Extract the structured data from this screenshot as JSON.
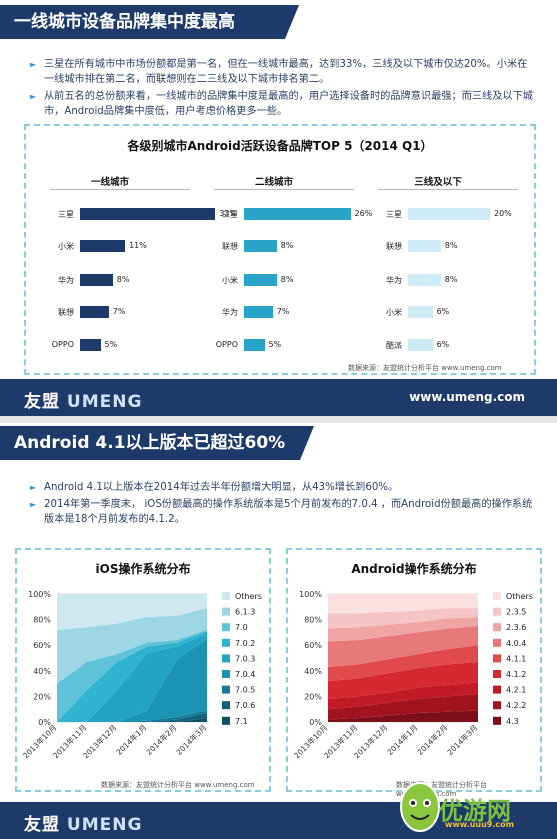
{
  "slide1": {
    "title": "一线城市设备品牌集中度最高",
    "bullets": [
      "三星在所有城市中市场份额都是第一名，但在一线城市最高，达到33%，三线及以下城市仅达20%。小米在一线城市排在第二名，而联想则在二三线及以下城市排名第二。",
      "从前五名的总份额来看，一线城市的品牌集中度是最高的，用户选择设备时的品牌意识最强；而三线及以下城市，Android品牌集中度低，用户考虑价格更多一些。"
    ],
    "source": "数据来源：友盟统计分析平台 www.umeng.com",
    "footer_logo_a": "友盟",
    "footer_logo_b": "UMENG",
    "footer_site": "www.umeng.com"
  },
  "slide2": {
    "title": "Android 4.1以上版本已超过60%",
    "bullets": [
      "Android 4.1以上版本在2014年过去半年份额增大明显，从43%增长到60%。",
      "2014年第一季度末， iOS份额最高的操作系统版本是5个月前发布的7.0.4 ，而Android份额最高的操作系统版本是18个月前发布的4.1.2。"
    ],
    "source": "数据来源：友盟统计分析平台 www.umeng.com",
    "footer_logo_a": "友盟",
    "footer_logo_b": "UMENG",
    "watermark": "优游网",
    "watermark_url": "www.uuu9.com"
  },
  "chart_data": [
    {
      "type": "bar",
      "title": "各级别城市Android活跃设备品牌TOP 5（2014 Q1）",
      "panels": [
        {
          "name": "一线城市",
          "color": "#1e3a6b",
          "categories": [
            "三星",
            "小米",
            "华为",
            "联想",
            "OPPO"
          ],
          "values": [
            33,
            11,
            8,
            7,
            5
          ],
          "labels": [
            "33%",
            "11%",
            "8%",
            "7%",
            "5%"
          ]
        },
        {
          "name": "二线城市",
          "color": "#2aa3c9",
          "categories": [
            "三星",
            "联想",
            "小米",
            "华为",
            "OPPO"
          ],
          "values": [
            26,
            8,
            8,
            7,
            5
          ],
          "labels": [
            "26%",
            "8%",
            "8%",
            "7%",
            "5%"
          ]
        },
        {
          "name": "三线及以下",
          "color": "#cdeaf5",
          "categories": [
            "三星",
            "联想",
            "华为",
            "小米",
            "酷派"
          ],
          "values": [
            20,
            8,
            8,
            6,
            6
          ],
          "labels": [
            "20%",
            "8%",
            "8%",
            "6%",
            "6%"
          ]
        }
      ]
    },
    {
      "type": "area",
      "title": "iOS操作系统分布",
      "x": [
        "2013年10月",
        "2013年11月",
        "2013年12月",
        "2014年1月",
        "2014年2月",
        "2014年3月"
      ],
      "yticks": [
        "0%",
        "20%",
        "40%",
        "60%",
        "80%",
        "100%"
      ],
      "ylim": [
        0,
        100
      ],
      "series": [
        {
          "name": "7.1",
          "color": "#0e4f66",
          "values": [
            0,
            0,
            0,
            0,
            0,
            3
          ]
        },
        {
          "name": "7.0.6",
          "color": "#12627d",
          "values": [
            0,
            0,
            0,
            0,
            2,
            4
          ]
        },
        {
          "name": "7.0.5",
          "color": "#167a97",
          "values": [
            0,
            0,
            0,
            1,
            2,
            2
          ]
        },
        {
          "name": "7.0.4",
          "color": "#1b93b3",
          "values": [
            0,
            0,
            0,
            8,
            45,
            56
          ]
        },
        {
          "name": "7.0.3",
          "color": "#23a4c5",
          "values": [
            0,
            0,
            25,
            45,
            10,
            4
          ]
        },
        {
          "name": "7.0.2",
          "color": "#2fb3cf",
          "values": [
            0,
            25,
            22,
            5,
            3,
            2
          ]
        },
        {
          "name": "7.0",
          "color": "#5fc3d9",
          "values": [
            30,
            22,
            6,
            3,
            2,
            1
          ]
        },
        {
          "name": "6.1.3",
          "color": "#9dd6e5",
          "values": [
            42,
            27,
            24,
            20,
            19,
            17
          ]
        },
        {
          "name": "Others",
          "color": "#cfe8f0",
          "values": [
            28,
            26,
            23,
            18,
            17,
            11
          ]
        }
      ]
    },
    {
      "type": "area",
      "title": "Android操作系统分布",
      "x": [
        "2013年10月",
        "2013年11月",
        "2013年12月",
        "2014年1月",
        "2014年2月",
        "2014年3月"
      ],
      "yticks": [
        "0%",
        "20%",
        "40%",
        "60%",
        "80%",
        "100%"
      ],
      "ylim": [
        0,
        100
      ],
      "series": [
        {
          "name": "4.3",
          "color": "#7e0f1a",
          "values": [
            2,
            3,
            5,
            7,
            8,
            9
          ]
        },
        {
          "name": "4.2.2",
          "color": "#a3121f",
          "values": [
            8,
            9,
            10,
            11,
            12,
            13
          ]
        },
        {
          "name": "4.2.1",
          "color": "#c21a26",
          "values": [
            8,
            8,
            8,
            9,
            9,
            9
          ]
        },
        {
          "name": "4.1.2",
          "color": "#d62830",
          "values": [
            14,
            14,
            15,
            15,
            16,
            16
          ]
        },
        {
          "name": "4.1.1",
          "color": "#e04a4c",
          "values": [
            11,
            11,
            11,
            11,
            12,
            13
          ]
        },
        {
          "name": "4.0.4",
          "color": "#e8787a",
          "values": [
            20,
            19,
            18,
            17,
            16,
            15
          ]
        },
        {
          "name": "2.3.6",
          "color": "#f0a5a5",
          "values": [
            10,
            10,
            9,
            8,
            8,
            7
          ]
        },
        {
          "name": "2.3.5",
          "color": "#f5c5c5",
          "values": [
            12,
            11,
            10,
            9,
            8,
            7
          ]
        },
        {
          "name": "Others",
          "color": "#fae0e0",
          "values": [
            15,
            15,
            14,
            13,
            11,
            11
          ]
        }
      ]
    }
  ]
}
